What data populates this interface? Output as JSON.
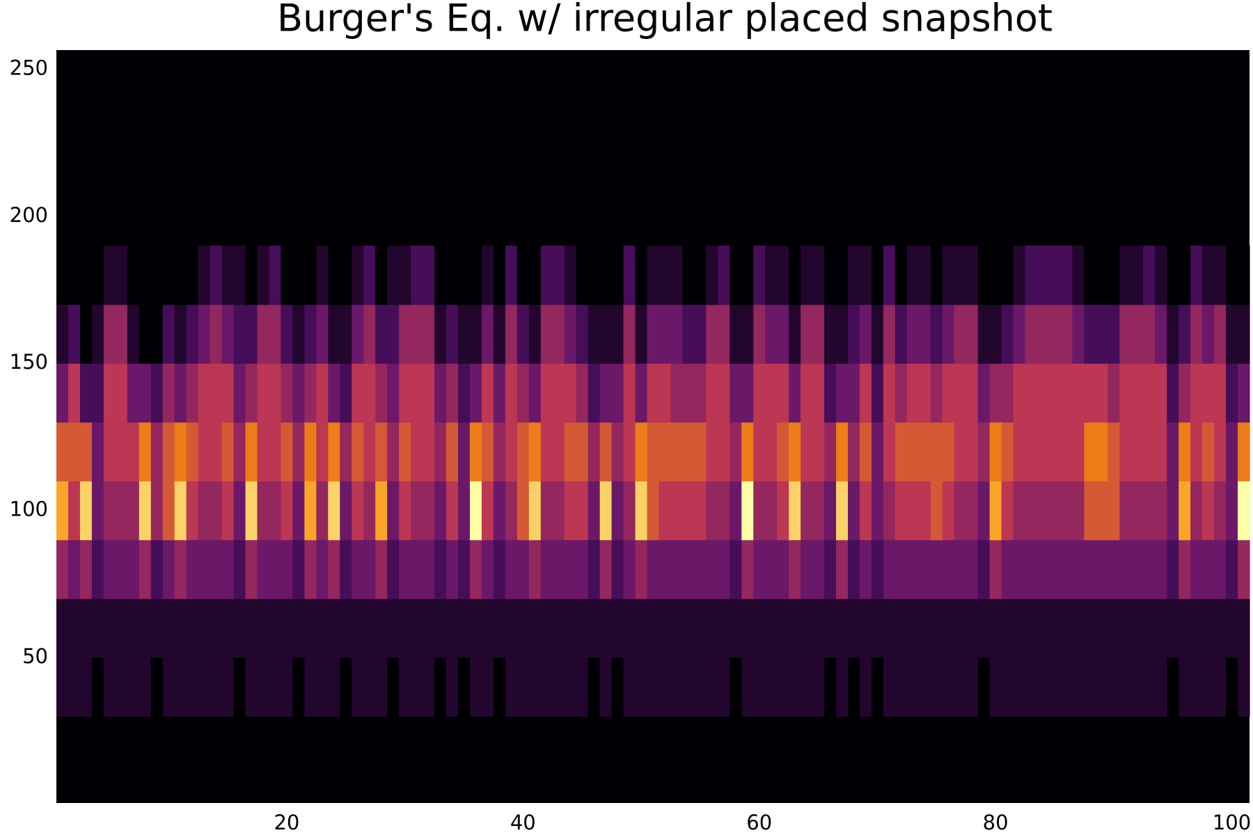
{
  "chart_data": {
    "type": "heatmap",
    "title": "Burger's Eq. w/ irregular placed snapshot",
    "x": [
      1,
      2,
      3,
      4,
      5,
      6,
      7,
      8,
      9,
      10,
      11,
      12,
      13,
      14,
      15,
      16,
      17,
      18,
      19,
      20,
      21,
      22,
      23,
      24,
      25,
      26,
      27,
      28,
      29,
      30,
      31,
      32,
      33,
      34,
      35,
      36,
      37,
      38,
      39,
      40,
      41,
      42,
      43,
      44,
      45,
      46,
      47,
      48,
      49,
      50,
      51,
      52,
      53,
      54,
      55,
      56,
      57,
      58,
      59,
      60,
      61,
      62,
      63,
      64,
      65,
      66,
      67,
      68,
      69,
      70,
      71,
      72,
      73,
      74,
      75,
      76,
      77,
      78,
      79,
      80,
      81,
      82,
      83,
      84,
      85,
      86,
      87,
      88,
      89,
      90,
      91,
      92,
      93,
      94,
      95,
      96,
      97,
      98,
      99,
      100,
      101
    ],
    "y_edges": [
      30,
      50,
      70,
      90,
      110,
      130,
      150,
      170,
      190
    ],
    "z": [
      [
        1,
        1,
        4,
        8,
        6,
        3,
        1,
        0
      ],
      [
        1,
        1,
        3,
        5,
        6,
        5,
        2,
        0
      ],
      [
        1,
        1,
        4,
        9,
        6,
        2,
        0,
        0
      ],
      [
        0,
        1,
        2,
        3,
        3,
        2,
        1,
        0
      ],
      [
        1,
        1,
        3,
        4,
        5,
        5,
        4,
        1
      ],
      [
        1,
        1,
        3,
        4,
        5,
        5,
        4,
        1
      ],
      [
        1,
        1,
        3,
        4,
        5,
        3,
        1,
        0
      ],
      [
        1,
        1,
        4,
        9,
        7,
        3,
        0,
        0
      ],
      [
        0,
        1,
        2,
        4,
        4,
        2,
        0,
        0
      ],
      [
        1,
        1,
        3,
        6,
        6,
        4,
        2,
        0
      ],
      [
        1,
        1,
        4,
        9,
        7,
        3,
        1,
        0
      ],
      [
        1,
        1,
        3,
        5,
        6,
        4,
        2,
        0
      ],
      [
        1,
        1,
        3,
        4,
        5,
        5,
        3,
        1
      ],
      [
        1,
        1,
        3,
        4,
        5,
        5,
        4,
        2
      ],
      [
        1,
        1,
        3,
        5,
        6,
        5,
        3,
        1
      ],
      [
        0,
        1,
        2,
        3,
        4,
        3,
        2,
        1
      ],
      [
        1,
        1,
        4,
        9,
        7,
        4,
        2,
        0
      ],
      [
        1,
        1,
        3,
        4,
        5,
        5,
        4,
        1
      ],
      [
        1,
        1,
        3,
        4,
        5,
        5,
        4,
        2
      ],
      [
        1,
        1,
        3,
        5,
        6,
        4,
        2,
        0
      ],
      [
        0,
        1,
        2,
        3,
        4,
        3,
        1,
        0
      ],
      [
        1,
        1,
        4,
        8,
        7,
        4,
        2,
        0
      ],
      [
        1,
        1,
        3,
        4,
        5,
        5,
        3,
        1
      ],
      [
        1,
        1,
        4,
        9,
        7,
        3,
        1,
        0
      ],
      [
        0,
        1,
        2,
        3,
        4,
        2,
        1,
        0
      ],
      [
        1,
        1,
        3,
        5,
        6,
        5,
        3,
        1
      ],
      [
        1,
        1,
        3,
        4,
        5,
        5,
        4,
        2
      ],
      [
        1,
        1,
        4,
        8,
        6,
        4,
        2,
        0
      ],
      [
        0,
        1,
        2,
        3,
        4,
        3,
        2,
        1
      ],
      [
        1,
        1,
        3,
        5,
        6,
        5,
        4,
        1
      ],
      [
        1,
        1,
        3,
        4,
        5,
        5,
        4,
        2
      ],
      [
        1,
        1,
        3,
        4,
        5,
        5,
        4,
        2
      ],
      [
        0,
        1,
        2,
        3,
        4,
        3,
        1,
        0
      ],
      [
        1,
        1,
        3,
        5,
        6,
        4,
        2,
        0
      ],
      [
        0,
        1,
        2,
        3,
        3,
        2,
        1,
        0
      ],
      [
        1,
        1,
        4,
        10,
        7,
        3,
        1,
        0
      ],
      [
        1,
        1,
        3,
        5,
        6,
        5,
        3,
        1
      ],
      [
        0,
        1,
        2,
        3,
        4,
        3,
        1,
        0
      ],
      [
        1,
        1,
        3,
        4,
        5,
        5,
        4,
        2
      ],
      [
        1,
        1,
        3,
        6,
        6,
        4,
        2,
        0
      ],
      [
        1,
        1,
        4,
        9,
        7,
        3,
        1,
        0
      ],
      [
        1,
        1,
        3,
        4,
        5,
        5,
        4,
        2
      ],
      [
        1,
        1,
        3,
        4,
        5,
        5,
        4,
        2
      ],
      [
        1,
        1,
        3,
        5,
        6,
        5,
        3,
        1
      ],
      [
        1,
        1,
        3,
        5,
        6,
        4,
        2,
        0
      ],
      [
        0,
        1,
        2,
        3,
        4,
        2,
        1,
        0
      ],
      [
        1,
        1,
        4,
        9,
        6,
        3,
        1,
        0
      ],
      [
        0,
        1,
        2,
        3,
        4,
        3,
        1,
        0
      ],
      [
        1,
        1,
        3,
        4,
        5,
        5,
        4,
        2
      ],
      [
        1,
        1,
        4,
        9,
        7,
        3,
        1,
        0
      ],
      [
        1,
        1,
        3,
        6,
        6,
        5,
        3,
        1
      ],
      [
        1,
        1,
        3,
        5,
        6,
        5,
        3,
        1
      ],
      [
        1,
        1,
        3,
        5,
        6,
        4,
        3,
        1
      ],
      [
        1,
        1,
        3,
        5,
        6,
        4,
        2,
        0
      ],
      [
        1,
        1,
        3,
        5,
        6,
        4,
        2,
        0
      ],
      [
        1,
        1,
        3,
        4,
        5,
        5,
        4,
        1
      ],
      [
        1,
        1,
        3,
        4,
        5,
        5,
        4,
        2
      ],
      [
        0,
        1,
        2,
        3,
        4,
        3,
        1,
        0
      ],
      [
        1,
        1,
        4,
        10,
        7,
        3,
        1,
        0
      ],
      [
        1,
        1,
        3,
        4,
        5,
        5,
        4,
        2
      ],
      [
        1,
        1,
        3,
        4,
        5,
        5,
        3,
        1
      ],
      [
        1,
        1,
        3,
        5,
        6,
        5,
        3,
        1
      ],
      [
        1,
        1,
        4,
        9,
        7,
        3,
        1,
        0
      ],
      [
        1,
        1,
        3,
        4,
        5,
        5,
        4,
        1
      ],
      [
        1,
        1,
        3,
        4,
        5,
        5,
        4,
        1
      ],
      [
        0,
        1,
        2,
        3,
        4,
        2,
        1,
        0
      ],
      [
        1,
        1,
        4,
        9,
        7,
        3,
        1,
        0
      ],
      [
        0,
        1,
        2,
        3,
        4,
        3,
        2,
        1
      ],
      [
        1,
        1,
        3,
        5,
        6,
        5,
        3,
        1
      ],
      [
        0,
        1,
        2,
        3,
        3,
        2,
        1,
        0
      ],
      [
        1,
        1,
        3,
        4,
        5,
        5,
        4,
        2
      ],
      [
        1,
        1,
        3,
        5,
        6,
        4,
        2,
        0
      ],
      [
        1,
        1,
        3,
        5,
        6,
        5,
        3,
        1
      ],
      [
        1,
        1,
        3,
        5,
        6,
        5,
        3,
        1
      ],
      [
        1,
        1,
        3,
        6,
        6,
        4,
        2,
        0
      ],
      [
        1,
        1,
        3,
        5,
        6,
        5,
        3,
        1
      ],
      [
        1,
        1,
        3,
        4,
        5,
        5,
        4,
        1
      ],
      [
        1,
        1,
        3,
        4,
        5,
        5,
        4,
        1
      ],
      [
        0,
        1,
        2,
        3,
        4,
        3,
        1,
        0
      ],
      [
        1,
        1,
        4,
        8,
        7,
        4,
        1,
        0
      ],
      [
        1,
        1,
        3,
        5,
        6,
        4,
        2,
        0
      ],
      [
        1,
        1,
        3,
        4,
        5,
        5,
        3,
        1
      ],
      [
        1,
        1,
        3,
        4,
        5,
        5,
        4,
        2
      ],
      [
        1,
        1,
        3,
        4,
        5,
        5,
        4,
        2
      ],
      [
        1,
        1,
        3,
        4,
        5,
        5,
        4,
        2
      ],
      [
        1,
        1,
        3,
        4,
        5,
        5,
        4,
        2
      ],
      [
        1,
        1,
        3,
        4,
        5,
        5,
        3,
        1
      ],
      [
        1,
        1,
        3,
        6,
        7,
        5,
        2,
        0
      ],
      [
        1,
        1,
        3,
        6,
        7,
        5,
        2,
        0
      ],
      [
        1,
        1,
        3,
        6,
        6,
        4,
        2,
        0
      ],
      [
        1,
        1,
        3,
        4,
        5,
        5,
        4,
        1
      ],
      [
        1,
        1,
        3,
        4,
        5,
        5,
        4,
        1
      ],
      [
        1,
        1,
        3,
        4,
        5,
        5,
        4,
        2
      ],
      [
        1,
        1,
        3,
        4,
        5,
        5,
        3,
        1
      ],
      [
        0,
        1,
        2,
        3,
        3,
        2,
        1,
        0
      ],
      [
        1,
        1,
        4,
        8,
        7,
        4,
        2,
        0
      ],
      [
        1,
        1,
        3,
        4,
        5,
        5,
        4,
        2
      ],
      [
        1,
        1,
        3,
        5,
        6,
        5,
        3,
        1
      ],
      [
        1,
        1,
        3,
        4,
        5,
        5,
        4,
        1
      ],
      [
        0,
        1,
        2,
        3,
        3,
        2,
        1,
        0
      ],
      [
        1,
        1,
        4,
        10,
        7,
        3,
        1,
        0
      ]
    ],
    "zlim": [
      0,
      10
    ],
    "colorscale": [
      "#000004",
      "#57106e",
      "#bc3754",
      "#f98e09",
      "#fcffa4"
    ],
    "background": "#000004",
    "xlim": [
      0.5,
      101.5
    ],
    "ylim": [
      0.5,
      256.5
    ],
    "xticks": [
      20,
      40,
      60,
      80,
      100
    ],
    "yticks": [
      50,
      100,
      150,
      200,
      250
    ]
  }
}
